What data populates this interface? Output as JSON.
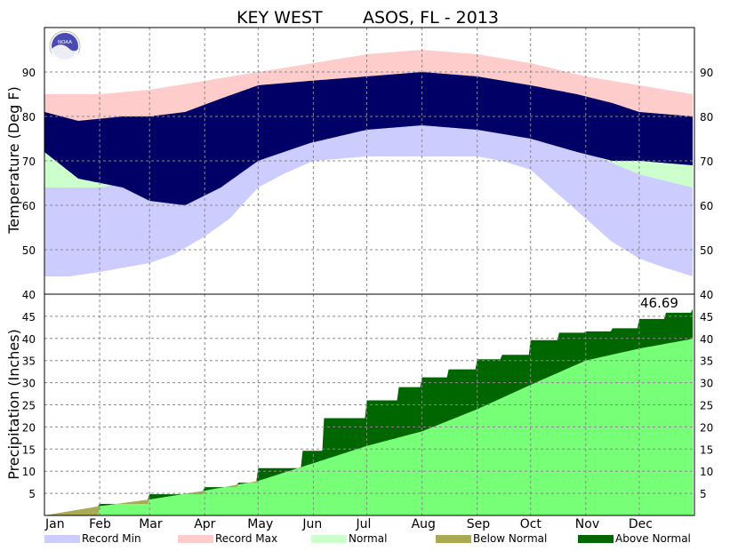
{
  "title": {
    "station": "KEY WEST",
    "network": "ASOS, FL - 2013"
  },
  "logo_text": "NOAA",
  "colors": {
    "record_min": "#ccccff",
    "record_max": "#ffcccc",
    "normal": "#ccffcc",
    "observed": "#000066",
    "below_normal": "#aaaa55",
    "above_normal": "#006600",
    "normal_precip": "#77ff77",
    "grid": "#888888"
  },
  "chart_data": [
    {
      "type": "bar",
      "title": "KEY WEST ASOS, FL - 2013",
      "ylabel": "Temperature (Deg F)",
      "ylim": [
        40,
        100
      ],
      "yticks": [
        40,
        50,
        60,
        70,
        80,
        90
      ],
      "grid": true,
      "series": [
        {
          "name": "Record Min",
          "key": "record_min",
          "color": "#ccccff",
          "points": [
            [
              1,
              44
            ],
            [
              15,
              44
            ],
            [
              32,
              45
            ],
            [
              46,
              46
            ],
            [
              60,
              47
            ],
            [
              74,
              49
            ],
            [
              91,
              53
            ],
            [
              105,
              57
            ],
            [
              121,
              64
            ],
            [
              135,
              67
            ],
            [
              152,
              70
            ],
            [
              182,
              71
            ],
            [
              213,
              71
            ],
            [
              244,
              71
            ],
            [
              258,
              70
            ],
            [
              274,
              68
            ],
            [
              288,
              63
            ],
            [
              305,
              57
            ],
            [
              319,
              52
            ],
            [
              335,
              48
            ],
            [
              349,
              46
            ],
            [
              365,
              44
            ]
          ]
        },
        {
          "name": "Normal",
          "key": "normal",
          "color": "#ccffcc",
          "low_points": [
            [
              1,
              64
            ],
            [
              32,
              64
            ],
            [
              60,
              66
            ],
            [
              91,
              69
            ],
            [
              121,
              73
            ],
            [
              152,
              76
            ],
            [
              182,
              79
            ],
            [
              213,
              79
            ],
            [
              244,
              78
            ],
            [
              274,
              76
            ],
            [
              305,
              72
            ],
            [
              335,
              67
            ],
            [
              365,
              64
            ]
          ],
          "high_points": [
            [
              1,
              75
            ],
            [
              32,
              76
            ],
            [
              60,
              77
            ],
            [
              91,
              80
            ],
            [
              121,
              83
            ],
            [
              152,
              86
            ],
            [
              182,
              88
            ],
            [
              213,
              89
            ],
            [
              244,
              88
            ],
            [
              274,
              85
            ],
            [
              305,
              81
            ],
            [
              335,
              77
            ],
            [
              365,
              75
            ]
          ]
        },
        {
          "name": "Record Max",
          "key": "record_max",
          "color": "#ffcccc",
          "points": [
            [
              1,
              85
            ],
            [
              32,
              85
            ],
            [
              60,
              86
            ],
            [
              91,
              88
            ],
            [
              121,
              90
            ],
            [
              152,
              92
            ],
            [
              182,
              94
            ],
            [
              213,
              95
            ],
            [
              244,
              94
            ],
            [
              274,
              92
            ],
            [
              305,
              89
            ],
            [
              335,
              87
            ],
            [
              365,
              85
            ]
          ]
        },
        {
          "name": "Observed",
          "key": "observed",
          "color": "#000066",
          "low_points": [
            [
              1,
              72
            ],
            [
              20,
              66
            ],
            [
              45,
              64
            ],
            [
              60,
              61
            ],
            [
              80,
              60
            ],
            [
              100,
              64
            ],
            [
              121,
              70
            ],
            [
              150,
              74
            ],
            [
              182,
              77
            ],
            [
              213,
              78
            ],
            [
              244,
              77
            ],
            [
              274,
              75
            ],
            [
              300,
              72
            ],
            [
              320,
              70
            ],
            [
              335,
              70
            ],
            [
              365,
              69
            ]
          ],
          "high_points": [
            [
              1,
              81
            ],
            [
              20,
              79
            ],
            [
              45,
              80
            ],
            [
              60,
              80
            ],
            [
              80,
              81
            ],
            [
              100,
              84
            ],
            [
              121,
              87
            ],
            [
              150,
              88
            ],
            [
              182,
              89
            ],
            [
              213,
              90
            ],
            [
              244,
              89
            ],
            [
              274,
              87
            ],
            [
              300,
              85
            ],
            [
              320,
              83
            ],
            [
              335,
              81
            ],
            [
              365,
              80
            ]
          ]
        }
      ]
    },
    {
      "type": "area",
      "ylabel": "Precipitation (Inches)",
      "ylim": [
        0,
        50
      ],
      "yticks": [
        5,
        10,
        15,
        20,
        25,
        30,
        35,
        40,
        45
      ],
      "annotation": "46.69",
      "grid": true,
      "series": [
        {
          "name": "Normal",
          "key": "normal_precip",
          "color": "#77ff77",
          "points": [
            [
              1,
              0
            ],
            [
              32,
              2.1
            ],
            [
              60,
              3.6
            ],
            [
              91,
              5.6
            ],
            [
              121,
              7.8
            ],
            [
              152,
              11.8
            ],
            [
              182,
              15.7
            ],
            [
              213,
              19.0
            ],
            [
              244,
              24.0
            ],
            [
              274,
              29.5
            ],
            [
              305,
              35.0
            ],
            [
              335,
              37.7
            ],
            [
              365,
              39.9
            ]
          ]
        },
        {
          "name": "Observed",
          "key": "observed_precip",
          "color": "#006600",
          "points": [
            [
              1,
              0
            ],
            [
              32,
              2.6
            ],
            [
              60,
              4.8
            ],
            [
              91,
              6.4
            ],
            [
              110,
              7.4
            ],
            [
              121,
              10.7
            ],
            [
              145,
              10.7
            ],
            [
              146,
              14.6
            ],
            [
              158,
              22.0
            ],
            [
              174,
              22.0
            ],
            [
              182,
              26.0
            ],
            [
              200,
              29.0
            ],
            [
              213,
              31.2
            ],
            [
              228,
              33.0
            ],
            [
              244,
              35.3
            ],
            [
              258,
              36.3
            ],
            [
              274,
              39.6
            ],
            [
              290,
              41.3
            ],
            [
              305,
              41.6
            ],
            [
              320,
              42.3
            ],
            [
              335,
              44.4
            ],
            [
              350,
              45.8
            ],
            [
              365,
              46.69
            ]
          ]
        }
      ]
    }
  ],
  "x_axis": {
    "months": [
      "Jan",
      "Feb",
      "Mar",
      "Apr",
      "May",
      "Jun",
      "Jul",
      "Aug",
      "Sep",
      "Oct",
      "Nov",
      "Dec"
    ],
    "month_start_days": [
      1,
      32,
      60,
      91,
      121,
      152,
      182,
      213,
      244,
      274,
      305,
      335
    ],
    "days_in_year": 365
  },
  "legend": {
    "placement": "bottom",
    "items": [
      {
        "label": "Record Min",
        "color": "#ccccff"
      },
      {
        "label": "Record Max",
        "color": "#ffcccc"
      },
      {
        "label": "Normal",
        "color": "#ccffcc"
      },
      {
        "label": "Below Normal",
        "color": "#aaaa55"
      },
      {
        "label": "Above Normal",
        "color": "#006600"
      }
    ]
  }
}
